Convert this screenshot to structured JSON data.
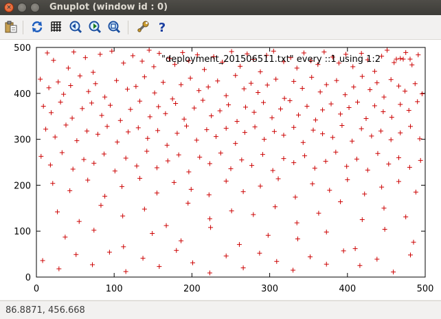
{
  "window": {
    "title": "Gnuplot (window id : 0)"
  },
  "toolbar": {
    "buttons": [
      {
        "name": "copy-to-clipboard",
        "icon": "clipboard-icon"
      },
      {
        "name": "replot",
        "icon": "refresh-icon"
      },
      {
        "name": "toggle-grid",
        "icon": "grid-icon"
      },
      {
        "name": "previous-zoom",
        "icon": "zoom-previous-icon"
      },
      {
        "name": "next-zoom",
        "icon": "zoom-next-icon"
      },
      {
        "name": "autoscale",
        "icon": "zoom-fit-icon"
      },
      {
        "name": "settings",
        "icon": "wrench-icon"
      },
      {
        "name": "help",
        "icon": "help-icon"
      }
    ]
  },
  "chart_data": {
    "type": "scatter",
    "title": "",
    "xlabel": "",
    "ylabel": "",
    "xlim": [
      0,
      500
    ],
    "ylim": [
      0,
      500
    ],
    "xticks": [
      "0",
      "100",
      "200",
      "300",
      "400",
      "500"
    ],
    "yticks": [
      "0",
      "100",
      "200",
      "300",
      "400",
      "500"
    ],
    "grid": false,
    "legend_position": "top-right",
    "series": [
      {
        "name": "\"deployment_201506511.txt\" every ::1 using 1:2",
        "color": "#cc0000",
        "marker": "+",
        "x": [
          14,
          22,
          41,
          48,
          63,
          73,
          82,
          97,
          112,
          124,
          136,
          145,
          151,
          158,
          171,
          178,
          188,
          196,
          207,
          216,
          228,
          239,
          251,
          262,
          271,
          279,
          288,
          296,
          305,
          318,
          327,
          335,
          344,
          353,
          362,
          370,
          381,
          389,
          398,
          407,
          418,
          426,
          435,
          444,
          451,
          460,
          468,
          475,
          483,
          491,
          5,
          16,
          28,
          35,
          44,
          56,
          67,
          76,
          88,
          103,
          117,
          128,
          139,
          152,
          163,
          175,
          186,
          198,
          209,
          221,
          233,
          244,
          256,
          267,
          276,
          285,
          297,
          308,
          319,
          331,
          342,
          354,
          365,
          373,
          386,
          397,
          408,
          419,
          429,
          438,
          447,
          456,
          466,
          474,
          487,
          496,
          9,
          19,
          31,
          46,
          59,
          71,
          84,
          95,
          108,
          121,
          133,
          146,
          157,
          166,
          179,
          190,
          203,
          214,
          225,
          236,
          247,
          258,
          269,
          280,
          292,
          303,
          314,
          326,
          337,
          348,
          359,
          368,
          379,
          391,
          402,
          413,
          424,
          435,
          446,
          457,
          468,
          479,
          490,
          12,
          24,
          38,
          52,
          65,
          79,
          91,
          104,
          118,
          131,
          143,
          156,
          168,
          181,
          193,
          206,
          219,
          231,
          244,
          256,
          268,
          281,
          293,
          306,
          318,
          331,
          343,
          356,
          368,
          381,
          393,
          406,
          418,
          431,
          443,
          456,
          468,
          481,
          493,
          6,
          18,
          33,
          47,
          61,
          74,
          87,
          101,
          115,
          129,
          142,
          155,
          169,
          183,
          196,
          210,
          223,
          237,
          250,
          264,
          277,
          291,
          304,
          318,
          331,
          345,
          358,
          372,
          385,
          399,
          412,
          426,
          439,
          453,
          466,
          480,
          494,
          21,
          43,
          66,
          88,
          110,
          133,
          155,
          177,
          199,
          222,
          244,
          266,
          288,
          311,
          333,
          355,
          377,
          400,
          422,
          444,
          466,
          488,
          27,
          55,
          83,
          111,
          139,
          167,
          195,
          223,
          251,
          279,
          307,
          335,
          363,
          391,
          419,
          447,
          475,
          37,
          74,
          112,
          149,
          186,
          224,
          261,
          298,
          336,
          373,
          410,
          448,
          485,
          8,
          29,
          51,
          72,
          94,
          115,
          137,
          158,
          180,
          201,
          223,
          244,
          266,
          287,
          309,
          330,
          352,
          373,
          395,
          416,
          438,
          459,
          481
        ],
        "y": [
          488,
          472,
          455,
          490,
          478,
          446,
          485,
          492,
          466,
          482,
          470,
          494,
          458,
          487,
          476,
          463,
          489,
          471,
          484,
          452,
          480,
          468,
          491,
          459,
          486,
          474,
          447,
          483,
          492,
          469,
          478,
          455,
          488,
          471,
          463,
          490,
          479,
          466,
          485,
          458,
          487,
          473,
          448,
          481,
          494,
          467,
          476,
          489,
          462,
          484,
          431,
          412,
          425,
          398,
          417,
          438,
          404,
          421,
          392,
          428,
          409,
          415,
          436,
          401,
          424,
          388,
          419,
          433,
          406,
          414,
          427,
          395,
          439,
          410,
          422,
          402,
          418,
          431,
          389,
          426,
          411,
          435,
          403,
          419,
          428,
          397,
          414,
          437,
          408,
          423,
          392,
          430,
          416,
          405,
          421,
          399,
          372,
          358,
          381,
          346,
          367,
          379,
          352,
          374,
          341,
          365,
          383,
          349,
          371,
          356,
          378,
          344,
          368,
          385,
          351,
          362,
          375,
          339,
          370,
          359,
          380,
          347,
          366,
          384,
          353,
          372,
          342,
          364,
          377,
          355,
          369,
          381,
          345,
          373,
          360,
          348,
          376,
          363,
          382,
          322,
          305,
          331,
          297,
          318,
          311,
          328,
          294,
          316,
          325,
          302,
          319,
          287,
          313,
          329,
          298,
          321,
          306,
          324,
          291,
          315,
          327,
          300,
          317,
          309,
          326,
          293,
          320,
          312,
          304,
          330,
          296,
          323,
          307,
          318,
          299,
          314,
          328,
          301,
          263,
          244,
          271,
          235,
          256,
          248,
          268,
          231,
          259,
          242,
          274,
          238,
          253,
          266,
          229,
          261,
          247,
          270,
          236,
          255,
          243,
          267,
          232,
          258,
          249,
          264,
          237,
          252,
          272,
          241,
          257,
          233,
          269,
          246,
          260,
          239,
          254,
          204,
          188,
          211,
          176,
          197,
          215,
          183,
          206,
          191,
          179,
          209,
          186,
          198,
          214,
          174,
          203,
          189,
          212,
          181,
          196,
          208,
          185,
          142,
          121,
          156,
          133,
          148,
          112,
          161,
          127,
          144,
          136,
          153,
          118,
          139,
          164,
          125,
          150,
          131,
          87,
          102,
          66,
          95,
          79,
          108,
          71,
          91,
          83,
          98,
          62,
          104,
          76,
          36,
          18,
          49,
          27,
          54,
          12,
          41,
          23,
          58,
          31,
          9,
          46,
          20,
          52,
          34,
          15,
          44,
          28,
          57,
          25,
          39,
          11,
          48
        ]
      }
    ]
  },
  "statusbar": {
    "coordinates": "86.8871, 456.668"
  }
}
